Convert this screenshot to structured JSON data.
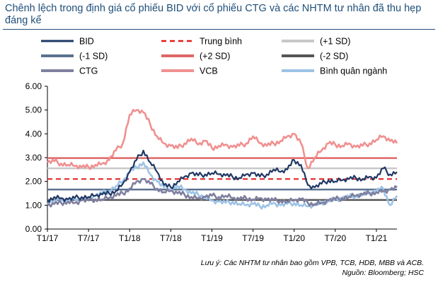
{
  "title": "Chênh lệch trong định giá cổ phiếu BID với cổ phiếu CTG và các NHTM tư nhân đã thu hẹp đáng kể",
  "note": "Lưu ý: Các NHTM tư nhân bao gồm VPB, TCB, HDB, MBB và  ACB.",
  "source": "Nguồn: Bloomberg; HSC",
  "chart_data": {
    "type": "line",
    "xlabel": "",
    "ylabel": "",
    "ylim": [
      0,
      6
    ],
    "yticks": [
      "0.00",
      "1.00",
      "2.00",
      "3.00",
      "4.00",
      "5.00",
      "6.00"
    ],
    "xticks": [
      "T1/17",
      "T7/17",
      "T1/18",
      "T7/18",
      "T1/19",
      "T7/19",
      "T1/20",
      "T7/20",
      "T1/21"
    ],
    "xrange": [
      "2017-01",
      "2021-04"
    ],
    "grid": false,
    "legend_position": "top",
    "reference_lines": [
      {
        "name": "Trung bình",
        "value": 2.1,
        "color": "#e41a1c",
        "style": "dashed"
      },
      {
        "name": "(+1 SD)",
        "value": 2.55,
        "color": "#c8c8c8",
        "style": "solid"
      },
      {
        "name": "(-1 SD)",
        "value": 1.66,
        "color": "#5b7290",
        "style": "solid"
      },
      {
        "name": "(+2 SD)",
        "value": 2.98,
        "color": "#e06666",
        "style": "solid"
      },
      {
        "name": "(-2 SD)",
        "value": 1.22,
        "color": "#555555",
        "style": "solid"
      }
    ],
    "series": [
      {
        "name": "BID",
        "color": "#1f3864",
        "x": [
          "2017-01",
          "2017-02",
          "2017-03",
          "2017-04",
          "2017-05",
          "2017-06",
          "2017-07",
          "2017-08",
          "2017-09",
          "2017-10",
          "2017-11",
          "2017-12",
          "2018-01",
          "2018-02",
          "2018-03",
          "2018-04",
          "2018-05",
          "2018-06",
          "2018-07",
          "2018-08",
          "2018-09",
          "2018-10",
          "2018-11",
          "2018-12",
          "2019-01",
          "2019-02",
          "2019-03",
          "2019-04",
          "2019-05",
          "2019-06",
          "2019-07",
          "2019-08",
          "2019-09",
          "2019-10",
          "2019-11",
          "2019-12",
          "2020-01",
          "2020-02",
          "2020-03",
          "2020-04",
          "2020-05",
          "2020-06",
          "2020-07",
          "2020-08",
          "2020-09",
          "2020-10",
          "2020-11",
          "2020-12",
          "2021-01",
          "2021-02",
          "2021-03",
          "2021-04"
        ],
        "values": [
          1.2,
          1.35,
          1.3,
          1.25,
          1.3,
          1.35,
          1.35,
          1.4,
          1.45,
          1.5,
          1.6,
          1.9,
          2.4,
          2.9,
          3.3,
          2.8,
          2.4,
          1.85,
          1.75,
          2.0,
          2.2,
          2.35,
          2.25,
          2.3,
          2.35,
          2.3,
          2.25,
          2.2,
          2.15,
          2.3,
          2.35,
          2.2,
          2.3,
          2.5,
          2.4,
          2.5,
          2.9,
          2.7,
          1.85,
          1.75,
          1.9,
          2.05,
          2.0,
          2.05,
          2.1,
          2.15,
          2.1,
          2.2,
          2.15,
          2.55,
          2.3,
          2.4
        ]
      },
      {
        "name": "CTG",
        "color": "#7f7f9f",
        "x": [
          "2017-01",
          "2017-02",
          "2017-03",
          "2017-04",
          "2017-05",
          "2017-06",
          "2017-07",
          "2017-08",
          "2017-09",
          "2017-10",
          "2017-11",
          "2017-12",
          "2018-01",
          "2018-02",
          "2018-03",
          "2018-04",
          "2018-05",
          "2018-06",
          "2018-07",
          "2018-08",
          "2018-09",
          "2018-10",
          "2018-11",
          "2018-12",
          "2019-01",
          "2019-02",
          "2019-03",
          "2019-04",
          "2019-05",
          "2019-06",
          "2019-07",
          "2019-08",
          "2019-09",
          "2019-10",
          "2019-11",
          "2019-12",
          "2020-01",
          "2020-02",
          "2020-03",
          "2020-04",
          "2020-05",
          "2020-06",
          "2020-07",
          "2020-08",
          "2020-09",
          "2020-10",
          "2020-11",
          "2020-12",
          "2021-01",
          "2021-02",
          "2021-03",
          "2021-04"
        ],
        "values": [
          1.0,
          1.05,
          1.1,
          1.15,
          1.1,
          1.2,
          1.2,
          1.25,
          1.25,
          1.3,
          1.4,
          1.5,
          1.7,
          2.0,
          2.1,
          1.9,
          1.7,
          1.55,
          1.6,
          1.5,
          1.45,
          1.35,
          1.3,
          1.35,
          1.4,
          1.35,
          1.4,
          1.3,
          1.25,
          1.3,
          1.25,
          1.3,
          1.25,
          1.2,
          1.2,
          1.15,
          1.2,
          1.25,
          1.1,
          1.05,
          1.1,
          1.2,
          1.25,
          1.3,
          1.35,
          1.4,
          1.45,
          1.5,
          1.55,
          1.6,
          1.65,
          1.75
        ]
      },
      {
        "name": "VCB",
        "color": "#f09090",
        "x": [
          "2017-01",
          "2017-02",
          "2017-03",
          "2017-04",
          "2017-05",
          "2017-06",
          "2017-07",
          "2017-08",
          "2017-09",
          "2017-10",
          "2017-11",
          "2017-12",
          "2018-01",
          "2018-02",
          "2018-03",
          "2018-04",
          "2018-05",
          "2018-06",
          "2018-07",
          "2018-08",
          "2018-09",
          "2018-10",
          "2018-11",
          "2018-12",
          "2019-01",
          "2019-02",
          "2019-03",
          "2019-04",
          "2019-05",
          "2019-06",
          "2019-07",
          "2019-08",
          "2019-09",
          "2019-10",
          "2019-11",
          "2019-12",
          "2020-01",
          "2020-02",
          "2020-03",
          "2020-04",
          "2020-05",
          "2020-06",
          "2020-07",
          "2020-08",
          "2020-09",
          "2020-10",
          "2020-11",
          "2020-12",
          "2021-01",
          "2021-02",
          "2021-03",
          "2021-04"
        ],
        "values": [
          2.8,
          2.85,
          2.75,
          2.7,
          2.65,
          2.6,
          2.6,
          2.7,
          2.75,
          2.9,
          3.3,
          3.6,
          4.8,
          5.0,
          4.9,
          4.4,
          3.9,
          3.6,
          3.5,
          3.4,
          3.6,
          3.8,
          3.55,
          3.7,
          3.4,
          3.5,
          3.55,
          3.45,
          3.5,
          3.6,
          3.9,
          3.6,
          3.5,
          3.6,
          3.7,
          3.9,
          4.0,
          3.6,
          2.55,
          3.0,
          3.3,
          3.6,
          3.55,
          3.5,
          3.6,
          3.45,
          3.5,
          3.6,
          3.75,
          3.9,
          3.7,
          3.6
        ]
      },
      {
        "name": "Bình quân ngành",
        "color": "#9dc3e6",
        "x": [
          "2017-01",
          "2017-02",
          "2017-03",
          "2017-04",
          "2017-05",
          "2017-06",
          "2017-07",
          "2017-08",
          "2017-09",
          "2017-10",
          "2017-11",
          "2017-12",
          "2018-01",
          "2018-02",
          "2018-03",
          "2018-04",
          "2018-05",
          "2018-06",
          "2018-07",
          "2018-08",
          "2018-09",
          "2018-10",
          "2018-11",
          "2018-12",
          "2019-01",
          "2019-02",
          "2019-03",
          "2019-04",
          "2019-05",
          "2019-06",
          "2019-07",
          "2019-08",
          "2019-09",
          "2019-10",
          "2019-11",
          "2019-12",
          "2020-01",
          "2020-02",
          "2020-03",
          "2020-04",
          "2020-05",
          "2020-06",
          "2020-07",
          "2020-08",
          "2020-09",
          "2020-10",
          "2020-11",
          "2020-12",
          "2021-01",
          "2021-02",
          "2021-03",
          "2021-04"
        ],
        "values": [
          1.1,
          1.2,
          1.2,
          1.15,
          1.25,
          1.3,
          1.3,
          1.4,
          1.5,
          1.6,
          1.8,
          2.0,
          2.4,
          2.6,
          2.8,
          2.3,
          2.0,
          1.75,
          1.7,
          1.8,
          1.65,
          1.5,
          1.45,
          1.35,
          1.2,
          1.15,
          1.1,
          1.15,
          1.05,
          1.0,
          1.05,
          0.95,
          1.0,
          1.1,
          1.0,
          1.05,
          1.1,
          1.0,
          0.95,
          1.0,
          1.1,
          1.2,
          1.25,
          1.3,
          1.35,
          1.4,
          1.45,
          1.5,
          1.6,
          1.7,
          1.0,
          1.4
        ]
      }
    ]
  }
}
